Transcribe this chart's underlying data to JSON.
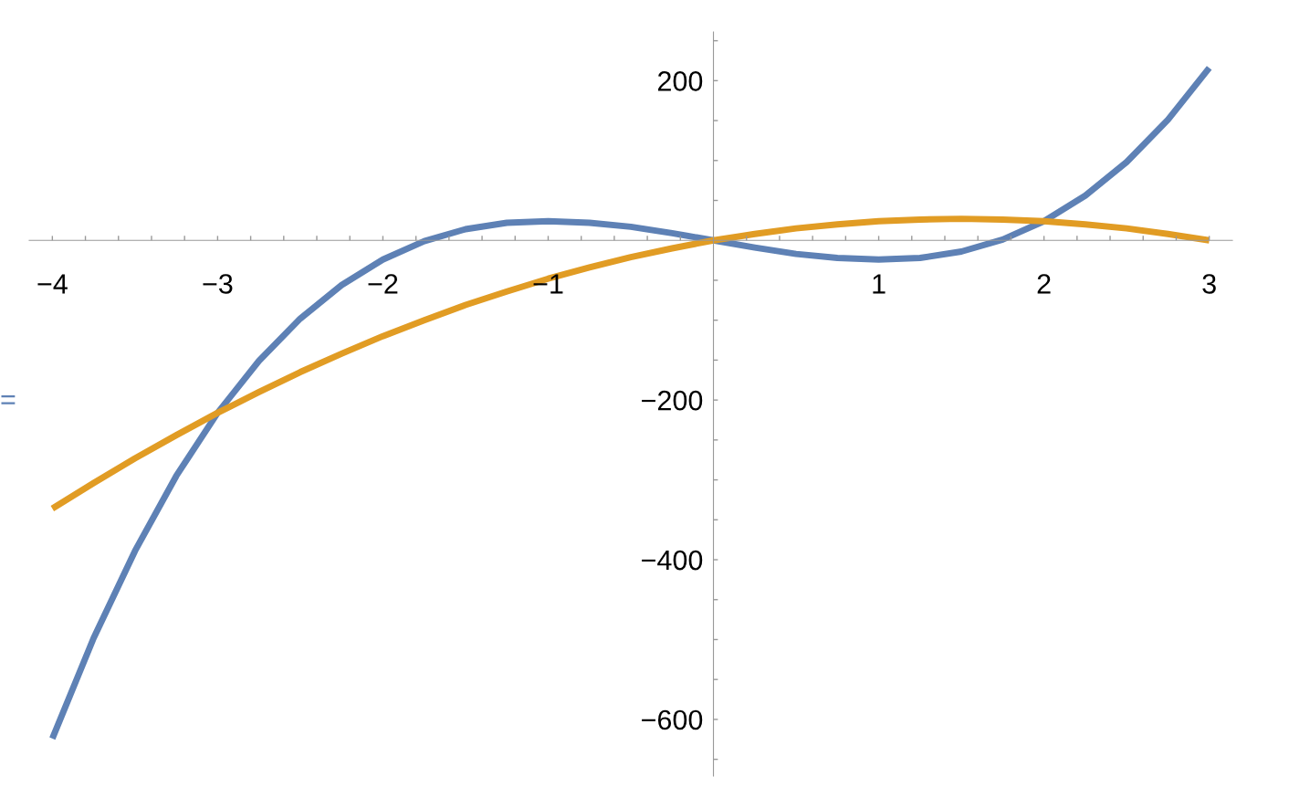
{
  "chart_data": {
    "type": "line",
    "x": [
      -4,
      -3.75,
      -3.5,
      -3.25,
      -3,
      -2.75,
      -2.5,
      -2.25,
      -2,
      -1.75,
      -1.5,
      -1.25,
      -1,
      -0.75,
      -0.5,
      -0.25,
      0,
      0.25,
      0.5,
      0.75,
      1,
      1.25,
      1.5,
      1.75,
      2,
      2.25,
      2.5,
      2.75,
      3
    ],
    "series": [
      {
        "color": "#5e81b5",
        "values": [
          -624,
          -498,
          -389,
          -295,
          -216,
          -151,
          -98,
          -56,
          -24,
          -1,
          14,
          22,
          24,
          22,
          17,
          9,
          0,
          -9,
          -17,
          -22,
          -24,
          -22,
          -14,
          1,
          24,
          56,
          98,
          151,
          216
        ]
      },
      {
        "color": "#e19c24",
        "values": [
          -336,
          -304,
          -273,
          -244,
          -216,
          -190,
          -165,
          -142,
          -120,
          -100,
          -81,
          -64,
          -48,
          -34,
          -21,
          -10,
          0,
          8,
          15,
          20,
          24,
          26,
          27,
          26,
          24,
          20,
          15,
          8,
          0
        ]
      }
    ],
    "annotations": [
      "="
    ],
    "xlim": [
      -4.14,
      3.14
    ],
    "ylim": [
      -671,
      261
    ],
    "xticks": [
      {
        "value": -4,
        "label": "−4"
      },
      {
        "value": -3.8,
        "label": null
      },
      {
        "value": -3.6,
        "label": null
      },
      {
        "value": -3.4,
        "label": null
      },
      {
        "value": -3.2,
        "label": null
      },
      {
        "value": -3,
        "label": "−3"
      },
      {
        "value": -2.8,
        "label": null
      },
      {
        "value": -2.6,
        "label": null
      },
      {
        "value": -2.4,
        "label": null
      },
      {
        "value": -2.2,
        "label": null
      },
      {
        "value": -2,
        "label": "−2"
      },
      {
        "value": -1.8,
        "label": null
      },
      {
        "value": -1.6,
        "label": null
      },
      {
        "value": -1.4,
        "label": null
      },
      {
        "value": -1.2,
        "label": null
      },
      {
        "value": -1,
        "label": "−1"
      },
      {
        "value": -0.8,
        "label": null
      },
      {
        "value": -0.6,
        "label": null
      },
      {
        "value": -0.4,
        "label": null
      },
      {
        "value": -0.2,
        "label": null
      },
      {
        "value": 0.2,
        "label": null
      },
      {
        "value": 0.4,
        "label": null
      },
      {
        "value": 0.6,
        "label": null
      },
      {
        "value": 0.8,
        "label": null
      },
      1,
      {
        "value": 1.2,
        "label": null
      },
      {
        "value": 1.4,
        "label": null
      },
      {
        "value": 1.6,
        "label": null
      },
      {
        "value": 1.8,
        "label": null
      },
      2,
      {
        "value": 2.2,
        "label": null
      },
      {
        "value": 2.4,
        "label": null
      },
      {
        "value": 2.6,
        "label": null
      },
      {
        "value": 2.8,
        "label": null
      },
      3
    ],
    "yticks": [
      {
        "value": -650,
        "label": null
      },
      {
        "value": -600,
        "label": "−600"
      },
      {
        "value": -550,
        "label": null
      },
      {
        "value": -500,
        "label": null
      },
      {
        "value": -450,
        "label": null
      },
      {
        "value": -400,
        "label": "−400"
      },
      {
        "value": -350,
        "label": null
      },
      {
        "value": -300,
        "label": null
      },
      {
        "value": -250,
        "label": null
      },
      {
        "value": -200,
        "label": "−200"
      },
      {
        "value": -150,
        "label": null
      },
      {
        "value": -100,
        "label": null
      },
      {
        "value": -50,
        "label": null
      },
      {
        "value": 50,
        "label": null
      },
      {
        "value": 100,
        "label": null
      },
      {
        "value": 150,
        "label": null
      },
      200,
      {
        "value": 250,
        "label": null
      }
    ],
    "grid": false,
    "marker": "none",
    "line_style": "solid"
  }
}
